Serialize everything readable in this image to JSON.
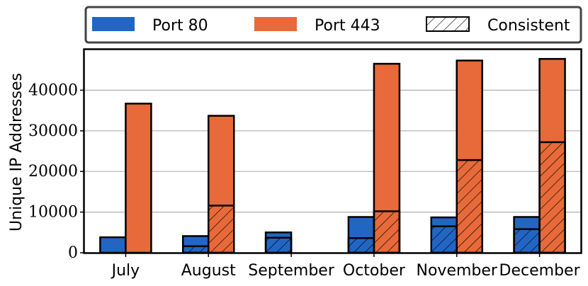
{
  "chart_data": {
    "type": "bar",
    "title": "",
    "xlabel": "",
    "ylabel": "Unique IP Addresses",
    "categories": [
      "July",
      "August",
      "September",
      "October",
      "November",
      "December"
    ],
    "series": [
      {
        "name": "Port 80",
        "color": "#2266c4",
        "values": [
          3800,
          4100,
          5000,
          8800,
          8700,
          8800
        ],
        "consistent": [
          0,
          1600,
          3700,
          3600,
          6500,
          5800
        ]
      },
      {
        "name": "Port 443",
        "color": "#e8693a",
        "values": [
          36700,
          33700,
          0,
          46500,
          47300,
          47700
        ],
        "consistent": [
          0,
          11600,
          0,
          10200,
          22800,
          27200
        ]
      }
    ],
    "consistent_label": "Consistent",
    "ylim": [
      0,
      50000
    ],
    "yticks": [
      "0",
      "10000",
      "20000",
      "30000",
      "40000"
    ],
    "grid": "horizontal",
    "legend_position": "top"
  }
}
